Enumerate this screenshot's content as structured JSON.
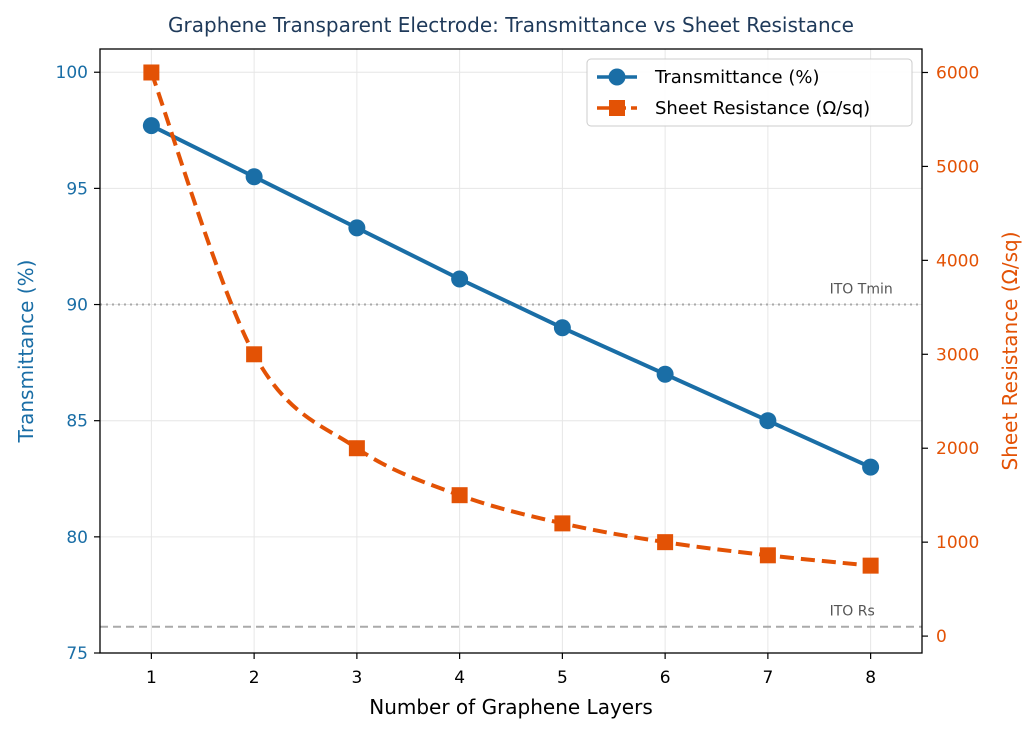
{
  "colors": {
    "transmittance": "#1a6ea6",
    "sheet_resistance": "#e35205",
    "title": "#1f3a5a",
    "grid": "#e6e6e6",
    "reference": "#aaaaaa"
  },
  "chart_data": {
    "type": "line",
    "title": "Graphene Transparent Electrode: Transmittance vs Sheet Resistance",
    "xlabel": "Number of Graphene Layers",
    "ylabel_left": "Transmittance (%)",
    "ylabel_right": "Sheet Resistance (Ω/sq)",
    "x": [
      1,
      2,
      3,
      4,
      5,
      6,
      7,
      8
    ],
    "xlim": [
      0.5,
      8.5
    ],
    "ylim_left": [
      75,
      101
    ],
    "ylim_right": [
      -180,
      6250
    ],
    "yticks_left": [
      75,
      80,
      85,
      90,
      95,
      100
    ],
    "yticks_right": [
      0,
      1000,
      2000,
      3000,
      4000,
      5000,
      6000
    ],
    "grid": true,
    "legend_position": "top-right",
    "series": [
      {
        "name": "Transmittance (%)",
        "axis": "left",
        "marker": "circle",
        "linestyle": "solid",
        "values": [
          97.7,
          95.5,
          93.3,
          91.1,
          89.0,
          87.0,
          85.0,
          83.0
        ]
      },
      {
        "name": "Sheet Resistance (Ω/sq)",
        "axis": "right",
        "marker": "square",
        "linestyle": "dashed",
        "values": [
          6000,
          3000,
          2000,
          1500,
          1200,
          1000,
          860,
          750
        ]
      }
    ],
    "reference_lines": [
      {
        "label": "ITO Tmin",
        "axis": "left",
        "value": 90,
        "style": "dotted"
      },
      {
        "label": "ITO Rs",
        "axis": "right",
        "value": 100,
        "style": "dashed"
      }
    ]
  }
}
